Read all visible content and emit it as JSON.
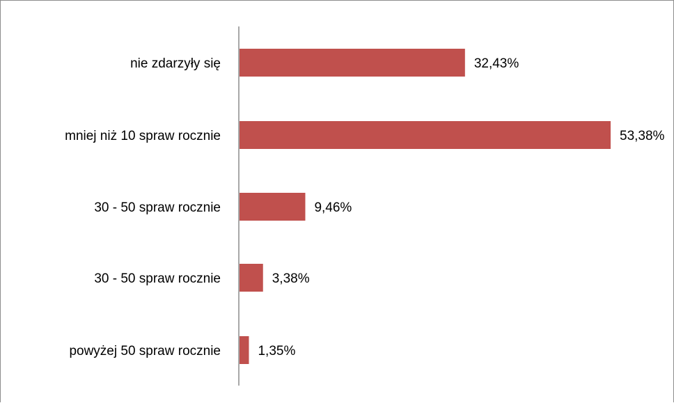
{
  "chart_data": {
    "type": "bar",
    "orientation": "horizontal",
    "categories": [
      "nie zdarzyły się",
      "mniej niż 10 spraw rocznie",
      "30 - 50 spraw rocznie",
      "30 - 50 spraw rocznie",
      "powyżej 50 spraw rocznie"
    ],
    "values": [
      32.43,
      53.38,
      9.46,
      3.38,
      1.35
    ],
    "value_labels": [
      "32,43%",
      "53,38%",
      "9,46%",
      "3,38%",
      "1,35%"
    ],
    "title": "",
    "xlabel": "",
    "ylabel": "",
    "xlim": [
      0,
      60
    ],
    "grid": false,
    "legend": "none",
    "bar_color": "#c0504d",
    "axis_color": "#8c8c8c"
  }
}
